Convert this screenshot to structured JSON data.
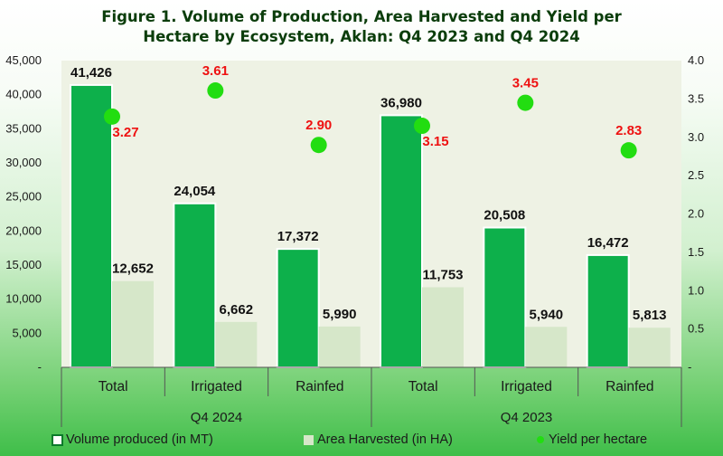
{
  "chart_data": {
    "type": "bar",
    "title_line1": "Figure 1. Volume of Production, Area Harvested and Yield per",
    "title_line2": "Hectare by Ecosystem, Aklan: Q4 2023 and Q4 2024",
    "groups": [
      {
        "label": "Q4 2024",
        "categories": [
          "Total",
          "Irrigated",
          "Rainfed"
        ]
      },
      {
        "label": "Q4 2023",
        "categories": [
          "Total",
          "Irrigated",
          "Rainfed"
        ]
      }
    ],
    "series": [
      {
        "name": "Volume produced (in MT)",
        "axis": "left",
        "kind": "bar",
        "values": [
          41426,
          24054,
          17372,
          36980,
          20508,
          16472
        ],
        "labels": [
          "41,426",
          "24,054",
          "17,372",
          "36,980",
          "20,508",
          "16,472"
        ]
      },
      {
        "name": "Area Harvested (in HA)",
        "axis": "left",
        "kind": "bar",
        "values": [
          12652,
          6662,
          5990,
          11753,
          5940,
          5813
        ],
        "labels": [
          "12,652",
          "6,662",
          "5,990",
          "11,753",
          "5,940",
          "5,813"
        ]
      },
      {
        "name": "Yield per hectare",
        "axis": "right",
        "kind": "scatter",
        "values": [
          3.27,
          3.61,
          2.9,
          3.15,
          3.45,
          2.83
        ],
        "labels": [
          "3.27",
          "3.61",
          "2.90",
          "3.15",
          "3.45",
          "2.83"
        ]
      }
    ],
    "y_left": {
      "range": [
        0,
        45000
      ],
      "ticks": [
        "-",
        "5,000",
        "10,000",
        "15,000",
        "20,000",
        "25,000",
        "30,000",
        "35,000",
        "40,000",
        "45,000"
      ]
    },
    "y_right": {
      "range": [
        0,
        4.0
      ],
      "ticks": [
        "-",
        "0.5",
        "1.0",
        "1.5",
        "2.0",
        "2.5",
        "3.0",
        "3.5",
        "4.0"
      ]
    },
    "grid": false,
    "legend_position": "bottom"
  },
  "colors": {
    "volume_bar": "#0db04b",
    "area_bar": "#d6e7c9",
    "yield_dot": "#22dd11",
    "yield_label": "#ee1111",
    "plot_bg": "#eef2e4"
  }
}
